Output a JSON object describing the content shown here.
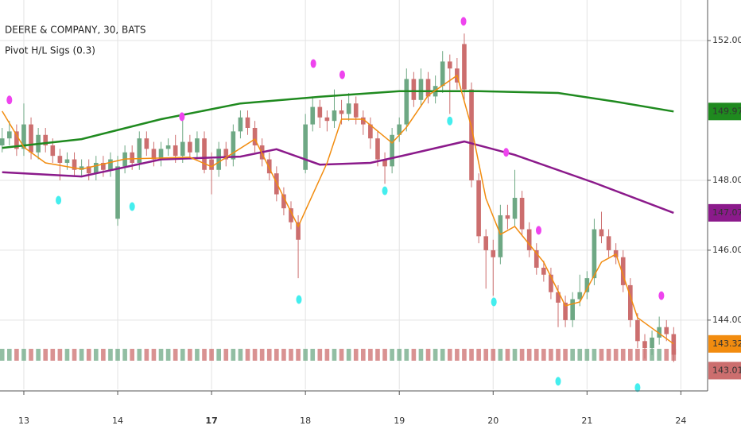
{
  "chart_data": {
    "type": "candlestick",
    "title": "DEERE & COMPANY, 30, BATS",
    "subtitle": "Pivot H/L Sigs (0.3)",
    "up_color": "#6ea884",
    "down_color": "#cc6e6e",
    "xlim": [
      -0.3,
      97.7
    ],
    "ylim": [
      142.02,
      153.16
    ],
    "grid": true,
    "xticks": [
      {
        "value": 3,
        "label": "13"
      },
      {
        "value": 16,
        "label": "14"
      },
      {
        "value": 29,
        "label": "17"
      },
      {
        "value": 42,
        "label": "18"
      },
      {
        "value": 55,
        "label": "19"
      },
      {
        "value": 68,
        "label": "20"
      },
      {
        "value": 81,
        "label": "21"
      },
      {
        "value": 94,
        "label": "24"
      }
    ],
    "yticks": [
      {
        "value": 144,
        "label": "144.00"
      },
      {
        "value": 146,
        "label": "146.00"
      },
      {
        "value": 148,
        "label": "148.00"
      },
      {
        "value": 152,
        "label": "152.00"
      }
    ],
    "ohlc": [
      [
        149.0,
        149.5,
        148.8,
        149.2
      ],
      [
        149.2,
        149.7,
        149.0,
        149.4
      ],
      [
        149.4,
        149.6,
        148.7,
        148.9
      ],
      [
        148.9,
        150.2,
        148.7,
        149.6
      ],
      [
        149.6,
        149.8,
        148.6,
        148.8
      ],
      [
        148.8,
        149.5,
        148.6,
        149.3
      ],
      [
        149.3,
        149.5,
        148.8,
        149.0
      ],
      [
        149.0,
        149.2,
        148.5,
        148.7
      ],
      [
        148.7,
        148.9,
        148.0,
        148.5
      ],
      [
        148.5,
        148.8,
        148.3,
        148.6
      ],
      [
        148.6,
        148.8,
        148.1,
        148.3
      ],
      [
        148.3,
        148.6,
        148.1,
        148.4
      ],
      [
        148.4,
        148.6,
        148.0,
        148.2
      ],
      [
        148.2,
        148.7,
        148.0,
        148.5
      ],
      [
        148.5,
        148.7,
        148.1,
        148.3
      ],
      [
        148.3,
        148.8,
        148.1,
        148.6
      ],
      [
        146.9,
        148.7,
        146.7,
        148.4
      ],
      [
        148.4,
        149.0,
        148.2,
        148.8
      ],
      [
        148.8,
        149.0,
        148.3,
        148.5
      ],
      [
        148.5,
        149.4,
        148.3,
        149.2
      ],
      [
        149.2,
        149.4,
        148.7,
        148.9
      ],
      [
        148.9,
        149.1,
        148.4,
        148.6
      ],
      [
        148.6,
        149.1,
        148.4,
        148.9
      ],
      [
        148.9,
        149.2,
        148.7,
        149.0
      ],
      [
        149.0,
        149.3,
        148.5,
        148.7
      ],
      [
        148.7,
        149.9,
        148.5,
        149.1
      ],
      [
        149.1,
        149.3,
        148.6,
        148.8
      ],
      [
        148.8,
        149.4,
        148.6,
        149.2
      ],
      [
        149.2,
        149.4,
        148.2,
        148.3
      ],
      [
        148.6,
        148.8,
        147.6,
        148.3
      ],
      [
        148.3,
        149.1,
        148.1,
        148.9
      ],
      [
        148.9,
        149.1,
        148.4,
        148.6
      ],
      [
        148.6,
        149.6,
        148.4,
        149.4
      ],
      [
        149.4,
        150.0,
        149.2,
        149.8
      ],
      [
        149.8,
        150.0,
        149.3,
        149.5
      ],
      [
        149.5,
        149.7,
        148.8,
        149.0
      ],
      [
        149.0,
        149.2,
        148.4,
        148.6
      ],
      [
        148.6,
        148.8,
        148.0,
        148.2
      ],
      [
        148.2,
        148.4,
        147.4,
        147.6
      ],
      [
        147.6,
        147.8,
        147.0,
        147.2
      ],
      [
        147.2,
        147.4,
        146.6,
        146.8
      ],
      [
        146.8,
        147.0,
        145.2,
        146.3
      ],
      [
        148.3,
        149.9,
        148.2,
        149.6
      ],
      [
        149.6,
        150.4,
        149.4,
        150.1
      ],
      [
        150.1,
        150.3,
        149.5,
        149.8
      ],
      [
        149.8,
        150.0,
        149.4,
        149.7
      ],
      [
        149.7,
        150.6,
        149.5,
        150.0
      ],
      [
        150.0,
        150.3,
        149.6,
        149.9
      ],
      [
        149.9,
        150.5,
        149.7,
        150.2
      ],
      [
        150.2,
        150.4,
        149.6,
        149.8
      ],
      [
        149.8,
        150.0,
        149.3,
        149.6
      ],
      [
        149.6,
        149.8,
        148.9,
        149.2
      ],
      [
        149.2,
        149.4,
        148.4,
        148.6
      ],
      [
        148.6,
        148.8,
        147.9,
        148.4
      ],
      [
        148.4,
        149.5,
        148.2,
        149.3
      ],
      [
        149.3,
        149.8,
        149.1,
        149.6
      ],
      [
        149.6,
        151.2,
        149.4,
        150.9
      ],
      [
        150.9,
        151.1,
        150.1,
        150.3
      ],
      [
        150.3,
        151.2,
        150.1,
        150.9
      ],
      [
        150.9,
        151.1,
        150.2,
        150.4
      ],
      [
        150.4,
        151.0,
        150.2,
        150.7
      ],
      [
        150.7,
        151.7,
        150.5,
        151.4
      ],
      [
        151.4,
        151.6,
        149.9,
        151.2
      ],
      [
        151.2,
        151.5,
        150.6,
        150.8
      ],
      [
        151.9,
        152.2,
        150.3,
        150.6
      ],
      [
        150.6,
        150.8,
        147.8,
        148.0
      ],
      [
        148.0,
        148.2,
        146.2,
        146.4
      ],
      [
        146.4,
        146.6,
        144.9,
        146.0
      ],
      [
        146.0,
        146.3,
        144.7,
        145.8
      ],
      [
        145.8,
        147.3,
        145.6,
        147.0
      ],
      [
        147.0,
        147.3,
        146.6,
        146.9
      ],
      [
        146.9,
        148.3,
        146.7,
        147.5
      ],
      [
        147.5,
        147.7,
        146.4,
        146.6
      ],
      [
        146.6,
        146.8,
        145.8,
        146.0
      ],
      [
        146.0,
        146.2,
        145.3,
        145.5
      ],
      [
        145.5,
        145.7,
        145.1,
        145.3
      ],
      [
        145.3,
        145.5,
        144.6,
        144.8
      ],
      [
        144.8,
        145.0,
        143.8,
        144.5
      ],
      [
        144.5,
        144.7,
        143.8,
        144.0
      ],
      [
        144.0,
        144.8,
        143.8,
        144.6
      ],
      [
        144.6,
        145.3,
        144.4,
        144.8
      ],
      [
        144.8,
        145.4,
        144.6,
        145.2
      ],
      [
        145.2,
        146.9,
        145.0,
        146.6
      ],
      [
        146.6,
        147.1,
        146.2,
        146.4
      ],
      [
        146.4,
        146.6,
        145.8,
        146.0
      ],
      [
        146.0,
        146.2,
        145.6,
        145.8
      ],
      [
        145.8,
        146.0,
        144.8,
        145.0
      ],
      [
        145.0,
        145.2,
        143.8,
        144.0
      ],
      [
        144.0,
        144.2,
        143.2,
        143.4
      ],
      [
        143.4,
        143.6,
        142.9,
        143.2
      ],
      [
        143.2,
        143.7,
        143.0,
        143.5
      ],
      [
        143.5,
        144.1,
        143.3,
        143.8
      ],
      [
        143.8,
        144.0,
        143.4,
        143.6
      ],
      [
        143.6,
        143.8,
        142.8,
        143.01
      ]
    ],
    "series": [
      {
        "color": "#1f8a1f",
        "x": [
          0,
          11,
          22,
          33,
          44,
          55,
          66,
          77,
          85,
          93
        ],
        "values": [
          148.93,
          149.18,
          149.75,
          150.2,
          150.39,
          150.55,
          150.55,
          150.5,
          150.25,
          149.97
        ]
      },
      {
        "color": "#8b1a8b",
        "x": [
          0,
          11,
          22,
          33,
          38,
          44,
          51,
          56,
          64,
          71,
          82,
          93
        ],
        "values": [
          148.23,
          148.11,
          148.6,
          148.68,
          148.89,
          148.45,
          148.5,
          148.73,
          149.11,
          148.73,
          147.93,
          147.07
        ]
      },
      {
        "color": "#f28c0f",
        "x": [
          0,
          3,
          6,
          11,
          17,
          26,
          29,
          35,
          41,
          45,
          47,
          50,
          54,
          56,
          59,
          63,
          65,
          67,
          69,
          71,
          75,
          78,
          80,
          83,
          85,
          88,
          93
        ],
        "values": [
          149.98,
          148.95,
          148.5,
          148.32,
          148.61,
          148.66,
          148.39,
          149.18,
          146.68,
          148.5,
          149.75,
          149.75,
          149.07,
          149.52,
          150.43,
          151.0,
          149.52,
          147.48,
          146.45,
          146.68,
          145.66,
          144.41,
          144.52,
          145.66,
          145.89,
          144.07,
          143.32
        ]
      }
    ],
    "pivot_highs": {
      "color": "#ee44ee",
      "x": [
        1.0,
        24.9,
        43.1,
        47.1,
        63.9,
        69.8,
        74.3,
        91.3
      ],
      "y": [
        150.3,
        149.82,
        151.34,
        151.02,
        152.55,
        148.8,
        146.57,
        144.7
      ]
    },
    "pivot_lows": {
      "color": "#44eeee",
      "x": [
        7.8,
        18,
        41.1,
        53,
        62,
        68.1,
        77,
        88
      ],
      "y": [
        147.43,
        147.25,
        144.59,
        147.7,
        149.7,
        144.52,
        142.25,
        142.07
      ]
    }
  }
}
